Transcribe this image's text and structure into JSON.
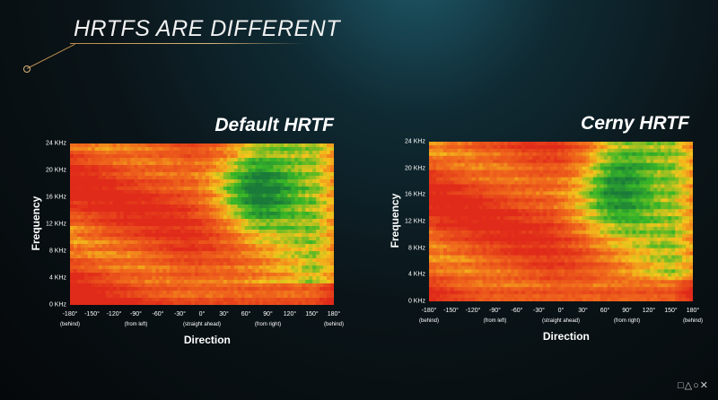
{
  "slide": {
    "title": "HRTFS ARE DIFFERENT",
    "logo_symbols": "□△○✕"
  },
  "colors": {
    "high": "#e02a1a",
    "mid_high": "#f06a1c",
    "mid": "#f3c61c",
    "low": "#38b628",
    "very_low": "#1a7a3a",
    "background": "#0a1418"
  },
  "chart_data": [
    {
      "type": "heatmap",
      "title": "Default HRTF",
      "xlabel": "Direction",
      "ylabel": "Frequency",
      "x_ticks": [
        "-180°",
        "-150°",
        "-120°",
        "-90°",
        "-60°",
        "-30°",
        "0°",
        "30°",
        "60°",
        "90°",
        "120°",
        "150°",
        "180°"
      ],
      "x_sublabels": [
        {
          "at": "-180°",
          "text": "(behind)"
        },
        {
          "at": "-90°",
          "text": "(from left)"
        },
        {
          "at": "0°",
          "text": "(straight ahead)"
        },
        {
          "at": "90°",
          "text": "(from right)"
        },
        {
          "at": "180°",
          "text": "(behind)"
        }
      ],
      "y_ticks": [
        "0 KHz",
        "4 KHz",
        "8 KHz",
        "12 KHz",
        "16 KHz",
        "20 KHz",
        "24 KHz"
      ],
      "xlim": [
        -180,
        180
      ],
      "ylim": [
        0,
        24
      ]
    },
    {
      "type": "heatmap",
      "title": "Cerny HRTF",
      "xlabel": "Direction",
      "ylabel": "Frequency",
      "x_ticks": [
        "-180°",
        "-150°",
        "-120°",
        "-90°",
        "-60°",
        "-30°",
        "0°",
        "30°",
        "60°",
        "90°",
        "120°",
        "150°",
        "180°"
      ],
      "x_sublabels": [
        {
          "at": "-180°",
          "text": "(behind)"
        },
        {
          "at": "-90°",
          "text": "(from left)"
        },
        {
          "at": "0°",
          "text": "(straight ahead)"
        },
        {
          "at": "90°",
          "text": "(from right)"
        },
        {
          "at": "180°",
          "text": "(behind)"
        }
      ],
      "y_ticks": [
        "0 KHz",
        "4 KHz",
        "8 KHz",
        "12 KHz",
        "16 KHz",
        "20 KHz",
        "24 KHz"
      ],
      "xlim": [
        -180,
        180
      ],
      "ylim": [
        0,
        24
      ]
    }
  ]
}
